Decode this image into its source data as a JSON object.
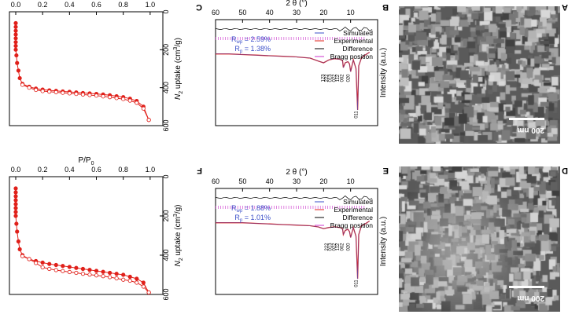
{
  "panels": [
    {
      "id": "A",
      "letter": "A",
      "type": "sem",
      "scale": "200 nm"
    },
    {
      "id": "D",
      "letter": "D",
      "type": "sem",
      "scale": "200 nm"
    },
    {
      "id": "B",
      "letter": "B"
    },
    {
      "id": "E",
      "letter": "E"
    },
    {
      "id": "C",
      "letter": "C"
    },
    {
      "id": "F",
      "letter": "F"
    }
  ],
  "chart_data": [
    {
      "panel": "B",
      "type": "line",
      "xlabel": "2 θ (°)",
      "ylabel": "Intensity (a.u.)",
      "xlim": [
        0,
        60
      ],
      "xticks": [
        10,
        20,
        30,
        40,
        50,
        60
      ],
      "legend": {
        "placement": "top-right",
        "entries": [
          "Simulated",
          "Experimental",
          "Difference",
          "Bragg position"
        ]
      },
      "colors": {
        "simulated": "#3b4fc8",
        "experimental": "#e0201a",
        "difference": "#000000",
        "bragg": "#cc33cc"
      },
      "annotations": {
        "rwp": "R",
        "rwp_sub": "wp",
        "rwp_val": " = 2.59%",
        "rp": "R",
        "rp_sub": "p",
        "rp_val": " = 1.38%"
      },
      "peak_labels": [
        "011",
        "020",
        "002",
        "112",
        "022",
        "013",
        "222",
        "123"
      ],
      "series": [
        {
          "name": "Experimental",
          "x": [
            3,
            4,
            5,
            6,
            7,
            7.4,
            8,
            9,
            10,
            10.4,
            11,
            12,
            12.7,
            13,
            14,
            16,
            18,
            20,
            22,
            25,
            30,
            35,
            40,
            45,
            50,
            55,
            60
          ],
          "y": [
            0.02,
            0.05,
            0.08,
            0.12,
            0.25,
            1.0,
            0.3,
            0.15,
            0.35,
            0.22,
            0.18,
            0.2,
            0.28,
            0.16,
            0.14,
            0.13,
            0.15,
            0.2,
            0.17,
            0.12,
            0.1,
            0.09,
            0.08,
            0.07,
            0.06,
            0.05,
            0.05
          ]
        }
      ]
    },
    {
      "panel": "E",
      "type": "line",
      "xlabel": "2 θ (°)",
      "ylabel": "Intensity (a.u.)",
      "xlim": [
        0,
        60
      ],
      "xticks": [
        10,
        20,
        30,
        40,
        50,
        60
      ],
      "legend": {
        "placement": "top-right",
        "entries": [
          "Simulated",
          "Experimental",
          "Difference",
          "Bragg position"
        ]
      },
      "colors": {
        "simulated": "#3b4fc8",
        "experimental": "#e0201a",
        "difference": "#000000",
        "bragg": "#cc33cc"
      },
      "annotations": {
        "rwp": "R",
        "rwp_sub": "wp",
        "rwp_val": " = 1.88%",
        "rp": "R",
        "rp_sub": "p",
        "rp_val": " = 1.01%"
      },
      "peak_labels": [
        "011",
        "020",
        "002",
        "112",
        "022",
        "013",
        "222"
      ],
      "series": [
        {
          "name": "Experimental",
          "x": [
            3,
            4,
            5,
            6,
            7,
            7.4,
            8,
            9,
            10,
            10.4,
            11,
            12,
            12.7,
            13,
            14,
            16,
            18,
            20,
            22,
            25,
            30,
            35,
            40,
            45,
            50,
            55,
            60
          ],
          "y": [
            0.02,
            0.05,
            0.08,
            0.1,
            0.25,
            1.0,
            0.28,
            0.13,
            0.3,
            0.2,
            0.16,
            0.18,
            0.25,
            0.15,
            0.13,
            0.12,
            0.13,
            0.15,
            0.12,
            0.1,
            0.09,
            0.08,
            0.07,
            0.06,
            0.05,
            0.05,
            0.05
          ]
        }
      ]
    },
    {
      "panel": "C",
      "type": "line",
      "xlabel": "P/P",
      "xlabel_sub": "0",
      "ylabel": "N",
      "ylabel_sub": "2",
      "ylabel_rest": " uptake (cm",
      "ylabel_sup": "3",
      "ylabel_end": "/g)",
      "xlim": [
        0,
        1.05
      ],
      "ylim": [
        0,
        600
      ],
      "xticks": [
        "0.0",
        "0.2",
        "0.4",
        "0.6",
        "0.8",
        "1.0"
      ],
      "yticks": [
        "0",
        "200",
        "400",
        "600"
      ],
      "colors": {
        "series": "#e0201a"
      },
      "series": [
        {
          "name": "adsorption",
          "x": [
            0.0,
            0.0,
            0.0,
            0.0,
            0.0,
            0.0,
            0.0,
            0.0,
            0.005,
            0.01,
            0.02,
            0.03,
            0.05,
            0.1,
            0.15,
            0.2,
            0.25,
            0.3,
            0.35,
            0.4,
            0.45,
            0.5,
            0.55,
            0.6,
            0.65,
            0.7,
            0.75,
            0.8,
            0.85,
            0.9,
            0.95,
            0.99
          ],
          "y": [
            60,
            80,
            100,
            120,
            140,
            160,
            180,
            200,
            230,
            270,
            310,
            350,
            380,
            395,
            405,
            410,
            414,
            417,
            420,
            422,
            425,
            428,
            430,
            433,
            436,
            440,
            445,
            450,
            458,
            470,
            500,
            570
          ]
        },
        {
          "name": "desorption",
          "x": [
            0.99,
            0.95,
            0.9,
            0.85,
            0.8,
            0.75,
            0.7,
            0.65,
            0.6,
            0.55,
            0.5,
            0.45,
            0.4,
            0.35,
            0.3,
            0.25,
            0.2,
            0.15,
            0.1,
            0.05
          ],
          "y": [
            570,
            510,
            480,
            468,
            460,
            455,
            450,
            446,
            442,
            439,
            436,
            433,
            430,
            427,
            424,
            421,
            418,
            412,
            400,
            385
          ]
        }
      ]
    },
    {
      "panel": "F",
      "type": "line",
      "xlabel": "P/P",
      "xlabel_sub": "0",
      "ylabel": "N",
      "ylabel_sub": "2",
      "ylabel_rest": " uptake (cm",
      "ylabel_sup": "3",
      "ylabel_end": "/g)",
      "xlim": [
        0,
        1.05
      ],
      "ylim": [
        0,
        600
      ],
      "xticks": [
        "0.0",
        "0.2",
        "0.4",
        "0.6",
        "0.8",
        "1.0"
      ],
      "yticks": [
        "0",
        "200",
        "400",
        "600"
      ],
      "colors": {
        "series": "#e0201a"
      },
      "series": [
        {
          "name": "adsorption",
          "x": [
            0.0,
            0.0,
            0.0,
            0.0,
            0.0,
            0.0,
            0.0,
            0.0,
            0.005,
            0.01,
            0.02,
            0.03,
            0.05,
            0.1,
            0.15,
            0.2,
            0.25,
            0.3,
            0.35,
            0.4,
            0.45,
            0.5,
            0.55,
            0.6,
            0.65,
            0.7,
            0.75,
            0.8,
            0.85,
            0.9,
            0.95,
            0.99
          ],
          "y": [
            60,
            80,
            100,
            120,
            140,
            160,
            180,
            200,
            240,
            280,
            330,
            370,
            400,
            420,
            430,
            438,
            445,
            450,
            455,
            460,
            465,
            470,
            475,
            480,
            485,
            490,
            495,
            500,
            510,
            520,
            540,
            590
          ]
        },
        {
          "name": "desorption",
          "x": [
            0.99,
            0.95,
            0.9,
            0.85,
            0.8,
            0.75,
            0.7,
            0.65,
            0.6,
            0.55,
            0.5,
            0.45,
            0.4,
            0.35,
            0.3,
            0.25,
            0.2,
            0.15,
            0.1,
            0.05
          ],
          "y": [
            590,
            560,
            540,
            530,
            525,
            518,
            512,
            507,
            503,
            499,
            495,
            490,
            486,
            481,
            476,
            470,
            462,
            440,
            420,
            405
          ]
        }
      ]
    }
  ]
}
